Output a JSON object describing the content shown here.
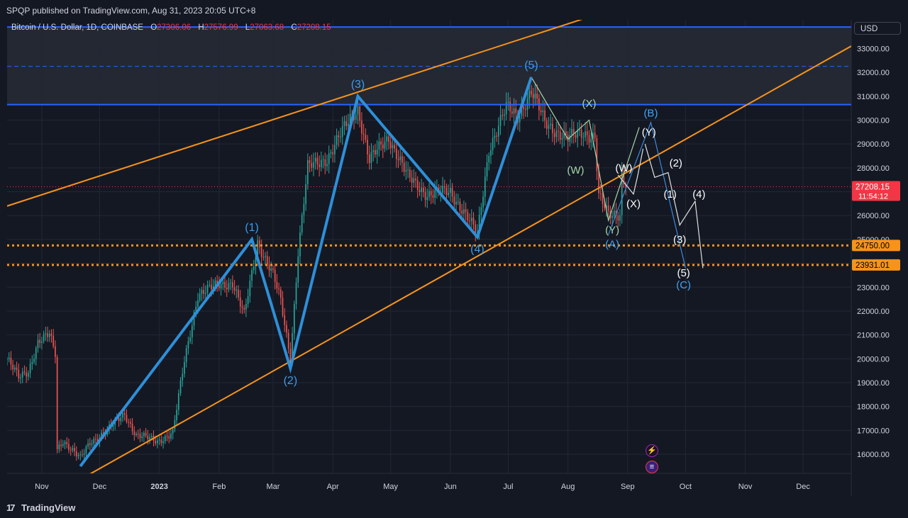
{
  "header": {
    "published_by": "SPQP published on TradingView.com, Aug 31, 2023 20:05 UTC+8"
  },
  "symbol": {
    "title": "Bitcoin / U.S. Dollar, 1D, COINBASE",
    "open_label": "O",
    "open": "27306.06",
    "high_label": "H",
    "high": "27576.99",
    "low_label": "L",
    "low": "27063.68",
    "close_label": "C",
    "close": "27208.15"
  },
  "currency": "USD",
  "price_label": {
    "value": "27208.15",
    "countdown": "11:54:12"
  },
  "level_labels": [
    "24750.00",
    "23931.01"
  ],
  "footer": {
    "brand": "TradingView"
  },
  "colors": {
    "background": "#141823",
    "up": "#26a69a",
    "down": "#ef5350",
    "wave_blue": "#2e8fd8",
    "channel": "#f7931a",
    "resistance": "#2962ff",
    "label_mint": "#a5d6a7",
    "label_white": "#ffffff",
    "label_blue": "#42a5f5"
  },
  "events": {
    "bolt_icon": "lightning-icon",
    "flag_icon": "us-flag-icon"
  },
  "chart_data": {
    "type": "candlestick",
    "yaxis": {
      "ticks": [
        16000,
        17000,
        18000,
        19000,
        20000,
        21000,
        22000,
        23000,
        24000,
        25000,
        26000,
        27000,
        28000,
        29000,
        30000,
        31000,
        32000,
        33000
      ],
      "tick_labels": [
        "16000.00",
        "17000.00",
        "18000.00",
        "19000.00",
        "20000.00",
        "21000.00",
        "22000.00",
        "23000.00",
        "24000.00",
        "25000.00",
        "26000.00",
        "27000.00",
        "28000.00",
        "29000.00",
        "30000.00",
        "31000.00",
        "32000.00",
        "33000.00"
      ],
      "range": [
        15200,
        34200
      ]
    },
    "xaxis": {
      "range": [
        "2022-10-14",
        "2023-12-26"
      ],
      "ticks": [
        {
          "date": "2022-11-01",
          "label": "Nov"
        },
        {
          "date": "2022-12-01",
          "label": "Dec"
        },
        {
          "date": "2023-01-01",
          "label": "2023"
        },
        {
          "date": "2023-02-01",
          "label": "Feb"
        },
        {
          "date": "2023-03-01",
          "label": "Mar"
        },
        {
          "date": "2023-04-01",
          "label": "Apr"
        },
        {
          "date": "2023-05-01",
          "label": "May"
        },
        {
          "date": "2023-06-01",
          "label": "Jun"
        },
        {
          "date": "2023-07-01",
          "label": "Jul"
        },
        {
          "date": "2023-08-01",
          "label": "Aug"
        },
        {
          "date": "2023-09-01",
          "label": "Sep"
        },
        {
          "date": "2023-10-01",
          "label": "Oct"
        },
        {
          "date": "2023-11-01",
          "label": "Nov"
        },
        {
          "date": "2023-12-01",
          "label": "Dec"
        }
      ]
    },
    "price_path": [
      [
        "2022-10-14",
        20000
      ],
      [
        "2022-10-20",
        19200
      ],
      [
        "2022-10-25",
        19500
      ],
      [
        "2022-10-30",
        20700
      ],
      [
        "2022-11-05",
        21000
      ],
      [
        "2022-11-08",
        20200
      ],
      [
        "2022-11-09",
        16200
      ],
      [
        "2022-11-12",
        16600
      ],
      [
        "2022-11-21",
        15800
      ],
      [
        "2022-11-26",
        16500
      ],
      [
        "2022-12-05",
        17000
      ],
      [
        "2022-12-14",
        17700
      ],
      [
        "2022-12-20",
        16800
      ],
      [
        "2022-12-31",
        16550
      ],
      [
        "2023-01-08",
        16900
      ],
      [
        "2023-01-14",
        19900
      ],
      [
        "2023-01-21",
        22700
      ],
      [
        "2023-02-01",
        23100
      ],
      [
        "2023-02-08",
        23200
      ],
      [
        "2023-02-14",
        21800
      ],
      [
        "2023-02-21",
        24900
      ],
      [
        "2023-03-01",
        23500
      ],
      [
        "2023-03-05",
        22400
      ],
      [
        "2023-03-10",
        20000
      ],
      [
        "2023-03-14",
        24500
      ],
      [
        "2023-03-19",
        28000
      ],
      [
        "2023-03-29",
        28400
      ],
      [
        "2023-04-11",
        30200
      ],
      [
        "2023-04-14",
        30500
      ],
      [
        "2023-04-20",
        28300
      ],
      [
        "2023-04-30",
        29300
      ],
      [
        "2023-05-10",
        27600
      ],
      [
        "2023-05-20",
        26900
      ],
      [
        "2023-06-01",
        27000
      ],
      [
        "2023-06-07",
        26300
      ],
      [
        "2023-06-15",
        25200
      ],
      [
        "2023-06-21",
        28800
      ],
      [
        "2023-06-30",
        30500
      ],
      [
        "2023-07-06",
        30200
      ],
      [
        "2023-07-13",
        31200
      ],
      [
        "2023-07-20",
        29900
      ],
      [
        "2023-08-01",
        29200
      ],
      [
        "2023-08-09",
        29500
      ],
      [
        "2023-08-15",
        29300
      ],
      [
        "2023-08-17",
        26800
      ],
      [
        "2023-08-22",
        26000
      ],
      [
        "2023-08-28",
        26100
      ],
      [
        "2023-08-29",
        27800
      ],
      [
        "2023-08-31",
        27208
      ]
    ],
    "ohlc_last": {
      "open": 27306.06,
      "high": 27576.99,
      "low": 27063.68,
      "close": 27208.15
    },
    "last_price": 27208.15,
    "wave_count": {
      "points": [
        {
          "date": "2022-11-21",
          "price": 15500,
          "label": ""
        },
        {
          "date": "2023-02-18",
          "price": 25000,
          "label": "(1)"
        },
        {
          "date": "2023-03-10",
          "price": 19600,
          "label": "(2)"
        },
        {
          "date": "2023-04-14",
          "price": 31000,
          "label": "(3)"
        },
        {
          "date": "2023-06-15",
          "price": 25100,
          "label": "(4)"
        },
        {
          "date": "2023-07-13",
          "price": 31800,
          "label": "(5)"
        }
      ]
    },
    "corrective_labels": [
      {
        "date": "2023-08-05",
        "price": 27900,
        "text": "(W)"
      },
      {
        "date": "2023-08-12",
        "price": 30700,
        "text": "(X)"
      },
      {
        "date": "2023-08-24",
        "price": 25400,
        "text": "(Y)"
      },
      {
        "date": "2023-08-24",
        "price": 24800,
        "text": "(A)"
      },
      {
        "date": "2023-08-30",
        "price": 28000,
        "text": "(W)"
      },
      {
        "date": "2023-09-04",
        "price": 26500,
        "text": "(X)"
      },
      {
        "date": "2023-09-12",
        "price": 29500,
        "text": "(Y)"
      },
      {
        "date": "2023-09-13",
        "price": 30300,
        "text": "(B)"
      },
      {
        "date": "2023-09-23",
        "price": 26900,
        "text": "(1)"
      },
      {
        "date": "2023-09-26",
        "price": 28200,
        "text": "(2)"
      },
      {
        "date": "2023-09-28",
        "price": 25000,
        "text": "(3)"
      },
      {
        "date": "2023-10-08",
        "price": 26900,
        "text": "(4)"
      },
      {
        "date": "2023-09-30",
        "price": 23600,
        "text": "(5)"
      },
      {
        "date": "2023-09-30",
        "price": 23100,
        "text": "(C)"
      }
    ],
    "projection_paths": {
      "mint": [
        [
          "2023-07-13",
          31800
        ],
        [
          "2023-08-01",
          29200
        ],
        [
          "2023-08-12",
          30000
        ],
        [
          "2023-08-22",
          25800
        ],
        [
          "2023-09-07",
          29700
        ]
      ],
      "blue_abc": [
        [
          "2023-08-22",
          25200
        ],
        [
          "2023-09-13",
          29900
        ],
        [
          "2023-10-01",
          23800
        ]
      ],
      "white_wxy": [
        [
          "2023-08-27",
          27700
        ],
        [
          "2023-09-01",
          27200
        ],
        [
          "2023-09-04",
          26900
        ],
        [
          "2023-09-06",
          27600
        ],
        [
          "2023-09-09",
          28800
        ]
      ],
      "white_impulse": [
        [
          "2023-09-10",
          29000
        ],
        [
          "2023-09-15",
          27600
        ],
        [
          "2023-09-22",
          27800
        ],
        [
          "2023-09-28",
          25600
        ],
        [
          "2023-10-06",
          26600
        ],
        [
          "2023-10-10",
          23800
        ]
      ]
    },
    "channel_lines": [
      {
        "from": [
          "2022-10-14",
          26400
        ],
        "to": [
          "2023-08-15",
          34400
        ]
      },
      {
        "from": [
          "2022-11-20",
          14900
        ],
        "to": [
          "2023-12-26",
          33100
        ]
      }
    ],
    "resistance_lines": [
      {
        "price": 33900,
        "style": "solid"
      },
      {
        "price": 30650,
        "style": "solid"
      },
      {
        "price": 32250,
        "style": "dashed"
      }
    ],
    "support_levels": [
      24750.0,
      23931.01
    ],
    "resistance_zone": [
      30650,
      33900
    ]
  }
}
